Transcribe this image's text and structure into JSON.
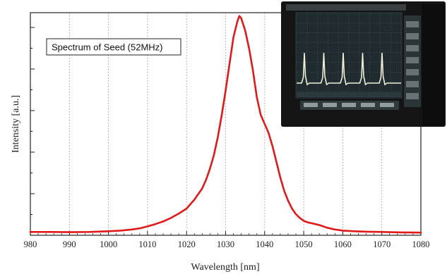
{
  "chart_data": {
    "type": "line",
    "title": "",
    "xlabel": "Wavelength [nm]",
    "ylabel": "Intensity [a.u.]",
    "xlim": [
      980,
      1080
    ],
    "ylim": [
      0,
      1
    ],
    "x_ticks": [
      "980",
      "990",
      "1000",
      "1010",
      "1020",
      "1030",
      "1040",
      "1050",
      "1060",
      "1070",
      "1080"
    ],
    "grid": "vertical-dotted",
    "annotation": "Spectrum of Seed (52MHz)",
    "series": [
      {
        "color": "#e01a1a",
        "x": [
          980,
          985,
          990,
          995,
          1000,
          1003,
          1006,
          1008,
          1010,
          1012,
          1014,
          1016,
          1018,
          1020,
          1022,
          1024,
          1025,
          1026,
          1027,
          1028,
          1029,
          1030,
          1031,
          1032,
          1033,
          1033.5,
          1034,
          1035,
          1036,
          1037,
          1038,
          1039,
          1040,
          1041,
          1042,
          1043,
          1044,
          1045,
          1046,
          1047,
          1048,
          1049,
          1050,
          1051,
          1052,
          1053,
          1054,
          1055,
          1056,
          1058,
          1060,
          1063,
          1066,
          1070,
          1075,
          1080
        ],
        "y": [
          0.015,
          0.015,
          0.014,
          0.015,
          0.018,
          0.021,
          0.026,
          0.031,
          0.04,
          0.05,
          0.062,
          0.078,
          0.097,
          0.12,
          0.16,
          0.21,
          0.25,
          0.3,
          0.36,
          0.44,
          0.54,
          0.65,
          0.77,
          0.89,
          0.96,
          0.985,
          0.975,
          0.92,
          0.84,
          0.74,
          0.62,
          0.54,
          0.5,
          0.46,
          0.4,
          0.33,
          0.26,
          0.2,
          0.155,
          0.12,
          0.095,
          0.078,
          0.065,
          0.058,
          0.054,
          0.05,
          0.046,
          0.04,
          0.034,
          0.026,
          0.021,
          0.018,
          0.016,
          0.015,
          0.013,
          0.012
        ]
      }
    ]
  },
  "inset": {
    "pulse_count": 5,
    "trace_color": "#f0f0d8",
    "screen_color": "#1f2b2e",
    "bezel_color": "#141414"
  }
}
